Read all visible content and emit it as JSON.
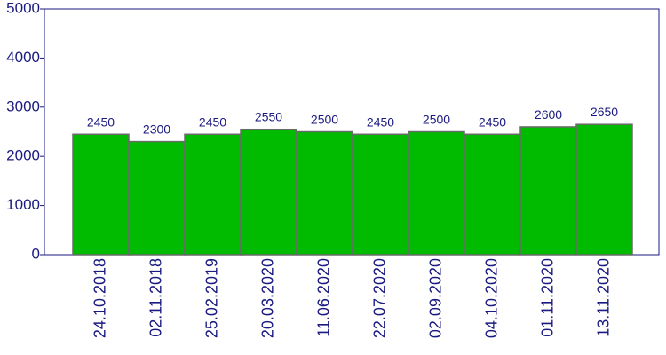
{
  "chart_data": {
    "type": "bar",
    "categories": [
      "24.10.2018",
      "02.11.2018",
      "25.02.2019",
      "20.03.2020",
      "11.06.2020",
      "22.07.2020",
      "02.09.2020",
      "04.10.2020",
      "01.11.2020",
      "13.11.2020"
    ],
    "values": [
      2450,
      2300,
      2450,
      2550,
      2500,
      2450,
      2500,
      2450,
      2600,
      2650
    ],
    "color": "#00bb00",
    "ylim": [
      0,
      5000
    ],
    "yticks": [
      0,
      1000,
      2000,
      3000,
      4000,
      5000
    ],
    "grid": false
  }
}
